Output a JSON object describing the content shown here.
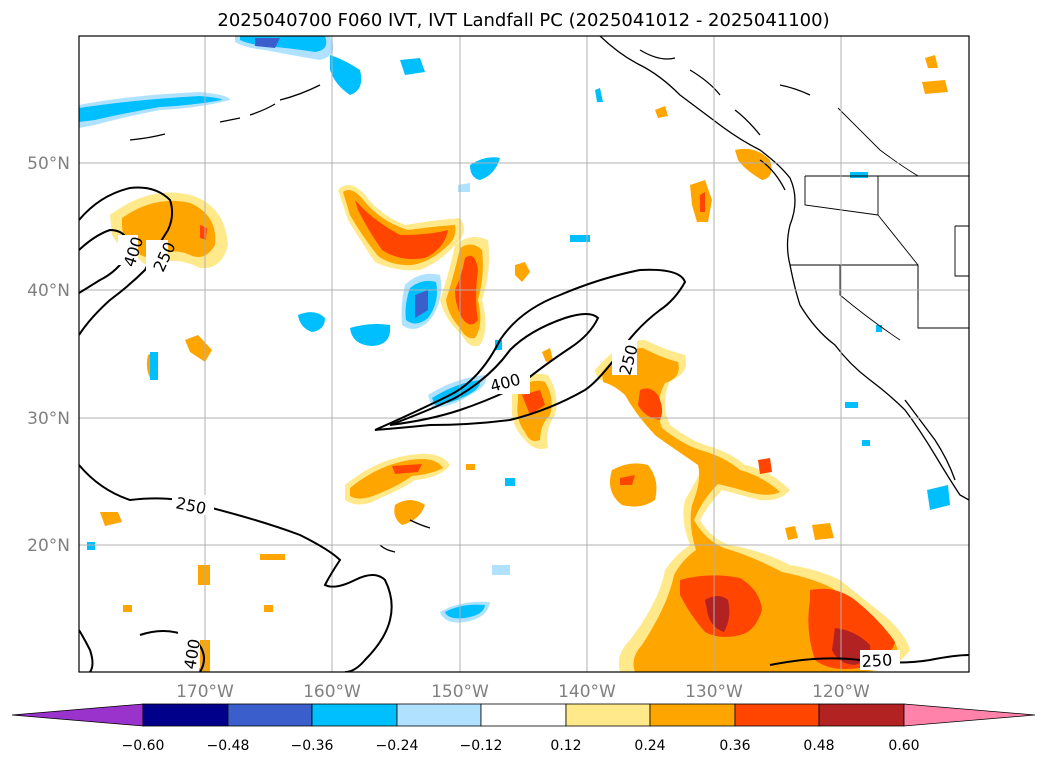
{
  "title": "2025040700 F060 IVT, IVT Landfall PC (2025041012 - 2025041100)",
  "map": {
    "lon_labels": [
      "170°W",
      "160°W",
      "150°W",
      "140°W",
      "130°W",
      "120°W"
    ],
    "lat_labels": [
      "50°N",
      "40°N",
      "30°N",
      "20°N"
    ],
    "contour_labels": [
      "400",
      "250",
      "400",
      "250",
      "250",
      "250",
      "400"
    ]
  },
  "colorbar": {
    "ticks": [
      "−0.60",
      "−0.48",
      "−0.36",
      "−0.24",
      "−0.12",
      "0.12",
      "0.24",
      "0.36",
      "0.48",
      "0.60"
    ],
    "colors": {
      "under": "#9933cc",
      "bins": [
        "#00008b",
        "#3a5fcd",
        "#00bfff",
        "#b0e2ff",
        "#ffffff",
        "#ffe98a",
        "#ffa500",
        "#ff4500",
        "#b22222"
      ],
      "over": "#ff82ab"
    }
  }
}
